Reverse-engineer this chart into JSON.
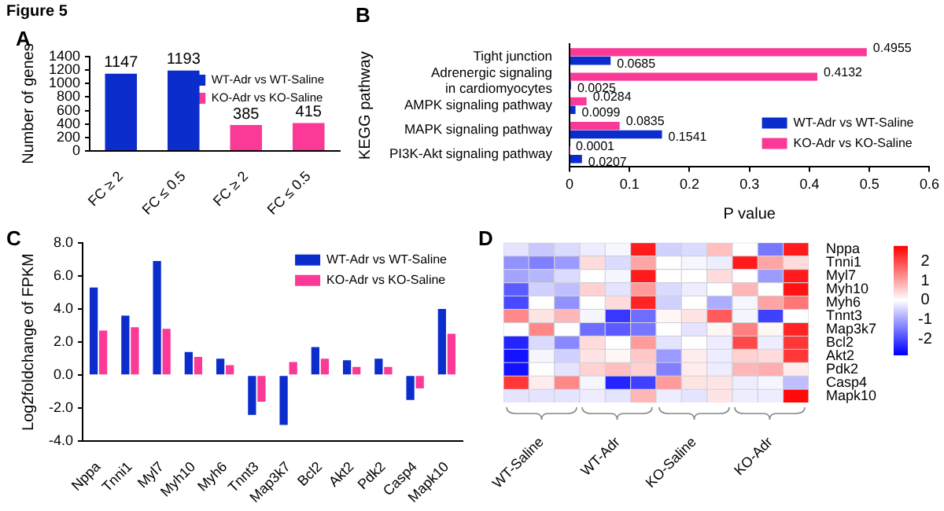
{
  "chart_data": [
    {
      "type": "bar",
      "annotations": [
        "Figure 5",
        "A"
      ],
      "categories": [
        "FC ≥ 2",
        "FC ≤ 0.5",
        "FC ≥ 2",
        "FC ≤ 0.5"
      ],
      "ylabel": "Number of genes",
      "ylim": [
        0,
        1400
      ],
      "yticks": [
        0,
        200,
        400,
        600,
        800,
        1000,
        1200,
        1400
      ],
      "data_labels": true,
      "legend": "right",
      "series": [
        {
          "name": "WT-Adr vs WT-Saline",
          "color": "#0a2dcc",
          "values": [
            1147,
            1193,
            null,
            null
          ]
        },
        {
          "name": "KO-Adr vs KO-Saline",
          "color": "#fa3a96",
          "values": [
            null,
            null,
            385,
            415
          ]
        }
      ]
    },
    {
      "type": "bar",
      "orientation": "horizontal",
      "annotations": [
        "B"
      ],
      "categories": [
        "Tight junction",
        "Adrenergic signaling in cardiomyocytes",
        "AMPK signaling pathway",
        "MAPK signaling pathway",
        "PI3K-Akt signaling pathway"
      ],
      "xlabel": "P value",
      "ylabel": "KEGG pathway",
      "xlim": [
        0,
        0.6
      ],
      "xticks": [
        0,
        0.1,
        0.2,
        0.3,
        0.4,
        0.5,
        0.6
      ],
      "data_labels": true,
      "legend": "bottom right",
      "series": [
        {
          "name": "WT-Adr vs WT-Saline",
          "color": "#0a2dcc",
          "values": [
            0.0685,
            0.0025,
            0.0099,
            0.1541,
            0.0207
          ]
        },
        {
          "name": "KO-Adr vs KO-Saline",
          "color": "#fa3a96",
          "values": [
            0.4955,
            0.4132,
            0.0284,
            0.0835,
            0.0001
          ]
        }
      ]
    },
    {
      "type": "bar",
      "annotations": [
        "C"
      ],
      "categories": [
        "Nppa",
        "Tnni1",
        "Myl7",
        "Myh10",
        "Myh6",
        "Tnnt3",
        "Map3k7",
        "Bcl2",
        "Akt2",
        "Pdk2",
        "Casp4",
        "Mapk10"
      ],
      "ylabel": "Log2foldchange of FPKM",
      "ylim": [
        -4,
        8
      ],
      "yticks": [
        {
          "value": -4,
          "label": "-4.0"
        },
        {
          "value": -2,
          "label": "-2.0"
        },
        {
          "value": 0,
          "label": "0.0"
        },
        {
          "value": 2,
          "label": "2.0"
        },
        {
          "value": 4,
          "label": "4.0"
        },
        {
          "value": 6,
          "label": "6.0"
        },
        {
          "value": 8,
          "label": "8.0"
        }
      ],
      "legend": "top right",
      "series": [
        {
          "name": "WT-Adr vs WT-Saline",
          "color": "#0a2dcc",
          "values": [
            5.3,
            3.6,
            6.9,
            1.4,
            1.0,
            -2.4,
            -3.0,
            1.7,
            0.9,
            1.0,
            -1.5,
            4.0
          ]
        },
        {
          "name": "KO-Adr vs KO-Saline",
          "color": "#fa3a96",
          "values": [
            2.7,
            2.9,
            2.8,
            1.1,
            0.6,
            -1.6,
            0.8,
            1.0,
            0.5,
            0.5,
            -0.8,
            2.5
          ]
        }
      ]
    },
    {
      "type": "heatmap",
      "annotations": [
        "D"
      ],
      "categories": [
        null,
        "WT-Saline",
        null,
        null,
        "WT-Adr",
        null,
        null,
        "KO-Saline",
        null,
        null,
        "KO-Adr",
        null
      ],
      "y_categories": [
        "Nppa",
        "Tnni1",
        "Myl7",
        "Myh10",
        "Myh6",
        "Tnnt3",
        "Map3k7",
        "Bcl2",
        "Akt2",
        "Pdk2",
        "Casp4",
        "Mapk10"
      ],
      "clim": [
        -2.8,
        2.8
      ],
      "cticks": [
        -2,
        -1,
        0,
        1,
        2
      ],
      "cells": [
        [
          -0.3,
          -0.6,
          -0.4,
          -0.2,
          -0.1,
          2.5,
          -0.5,
          -0.4,
          0.7,
          0,
          -1.5,
          2.5
        ],
        [
          -1.2,
          -1.4,
          -1.1,
          0.4,
          -0.4,
          1.0,
          0,
          -0.1,
          -0.2,
          2.5,
          1.0,
          0.4
        ],
        [
          -1.0,
          -0.8,
          -0.4,
          0,
          -0.1,
          2.5,
          0,
          0,
          0.4,
          0,
          -1.1,
          2.5
        ],
        [
          -1.8,
          -0.5,
          -0.7,
          0.5,
          -0.3,
          1.1,
          -0.4,
          -0.2,
          0,
          0.8,
          0,
          2.6
        ],
        [
          -2.0,
          0,
          -1.2,
          0,
          0.4,
          2.4,
          -0.5,
          0,
          -0.9,
          -0.1,
          1.0,
          1.5
        ],
        [
          1.3,
          0.3,
          0.8,
          -0.1,
          -2.2,
          -1.6,
          0.1,
          0.3,
          1.8,
          -0.1,
          -2.1,
          0
        ],
        [
          0,
          1.3,
          0,
          -1.6,
          -1.8,
          -1.5,
          0,
          -0.3,
          0.1,
          1.4,
          0.1,
          2.4
        ],
        [
          -2.4,
          -0.4,
          -1.3,
          0.4,
          0,
          1.1,
          -0.3,
          0,
          -0.2,
          2.0,
          -0.2,
          2.2
        ],
        [
          -2.6,
          -0.1,
          -0.5,
          0.3,
          0.1,
          0.6,
          -1.1,
          0.2,
          -0.2,
          0.5,
          0.4,
          2.2
        ],
        [
          -2.6,
          0,
          -0.3,
          0.5,
          0.7,
          0.5,
          -1.4,
          0.2,
          -0.2,
          0.8,
          0.9,
          0.2
        ],
        [
          2.2,
          0.2,
          1.3,
          -0.1,
          -2.4,
          -2.1,
          1.1,
          0.3,
          0.3,
          -0.2,
          -0.1,
          -0.7
        ],
        [
          -0.3,
          -0.3,
          -0.3,
          -0.2,
          -0.3,
          0.8,
          -0.2,
          -0.3,
          0.3,
          -0.2,
          -0.2,
          2.7
        ]
      ]
    }
  ]
}
